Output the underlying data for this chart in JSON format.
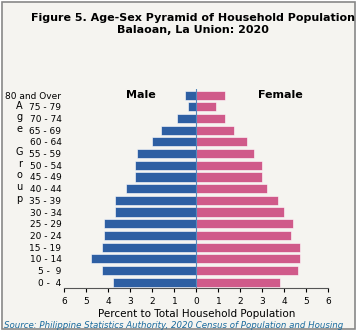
{
  "title": "Figure 5. Age-Sex Pyramid of Household Population\nBalaoan, La Union: 2020",
  "xlabel": "Percent to Total Household Population",
  "source": "Source: Philippine Statistics Authority, 2020 Census of Population and Housing",
  "age_groups": [
    "0 -  4",
    "5 -  9",
    "10 - 14",
    "15 - 19",
    "20 - 24",
    "25 - 29",
    "30 - 34",
    "35 - 39",
    "40 - 44",
    "45 - 49",
    "50 - 54",
    "55 - 59",
    "60 - 64",
    "65 - 69",
    "70 - 74",
    "75 - 79",
    "80 and Over"
  ],
  "male": [
    3.8,
    4.3,
    4.8,
    4.3,
    4.2,
    4.2,
    3.7,
    3.7,
    3.2,
    2.8,
    2.8,
    2.7,
    2.0,
    1.6,
    0.9,
    0.4,
    0.5
  ],
  "female": [
    3.8,
    4.6,
    4.7,
    4.7,
    4.3,
    4.4,
    4.0,
    3.7,
    3.2,
    3.0,
    3.0,
    2.6,
    2.3,
    1.7,
    1.3,
    0.9,
    1.3
  ],
  "male_color": "#2E5FA3",
  "female_color": "#D05A8A",
  "xlim": 6,
  "background_color": "#f5f4f0",
  "title_fontsize": 8.0,
  "tick_fontsize": 6.5,
  "label_fontsize": 7.5,
  "source_fontsize": 6.2,
  "ylabel_text": "A\ng\ne\n\nG\nr\no\nu\np"
}
